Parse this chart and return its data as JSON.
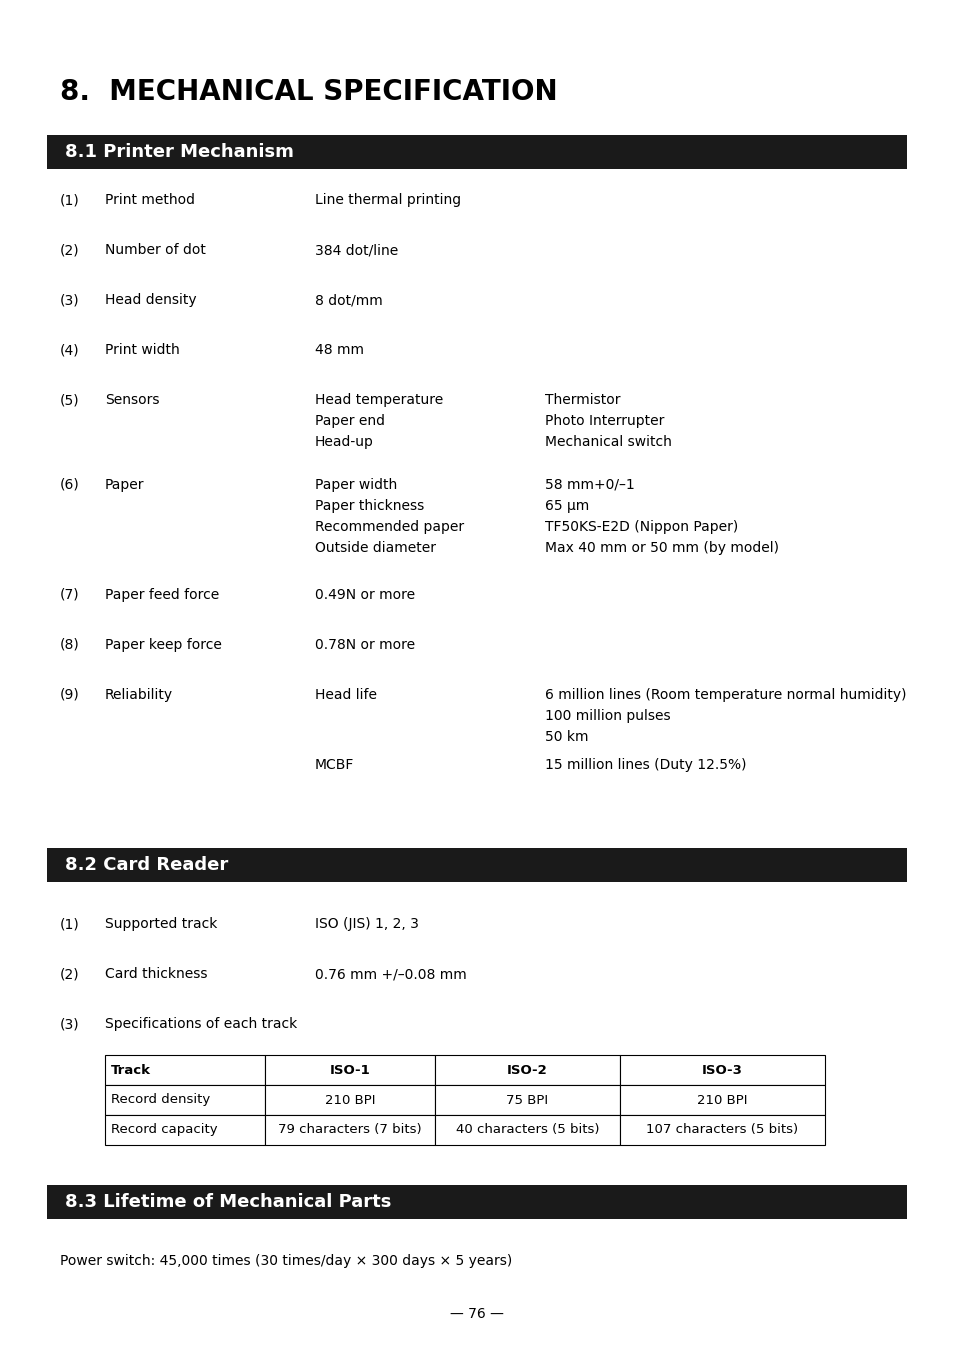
{
  "title": "8.  MECHANICAL SPECIFICATION",
  "section1_header": "8.1 Printer Mechanism",
  "section2_header": "8.2 Card Reader",
  "section3_header": "8.3 Lifetime of Mechanical Parts",
  "header_bg": "#1a1a1a",
  "header_fg": "#ffffff",
  "body_bg": "#ffffff",
  "body_fg": "#000000",
  "table_headers": [
    "Track",
    "ISO-1",
    "ISO-2",
    "ISO-3"
  ],
  "table_rows": [
    [
      "Record density",
      "210 BPI",
      "75 BPI",
      "210 BPI"
    ],
    [
      "Record capacity",
      "79 characters (7 bits)",
      "40 characters (5 bits)",
      "107 characters (5 bits)"
    ]
  ],
  "lifetime_text": "Power switch: 45,000 times (30 times/day × 300 days × 5 years)",
  "footer": "— 76 —",
  "font_size_title": 20,
  "font_size_header": 13,
  "font_size_body": 10,
  "font_size_table": 9.5,
  "font_size_footer": 10
}
